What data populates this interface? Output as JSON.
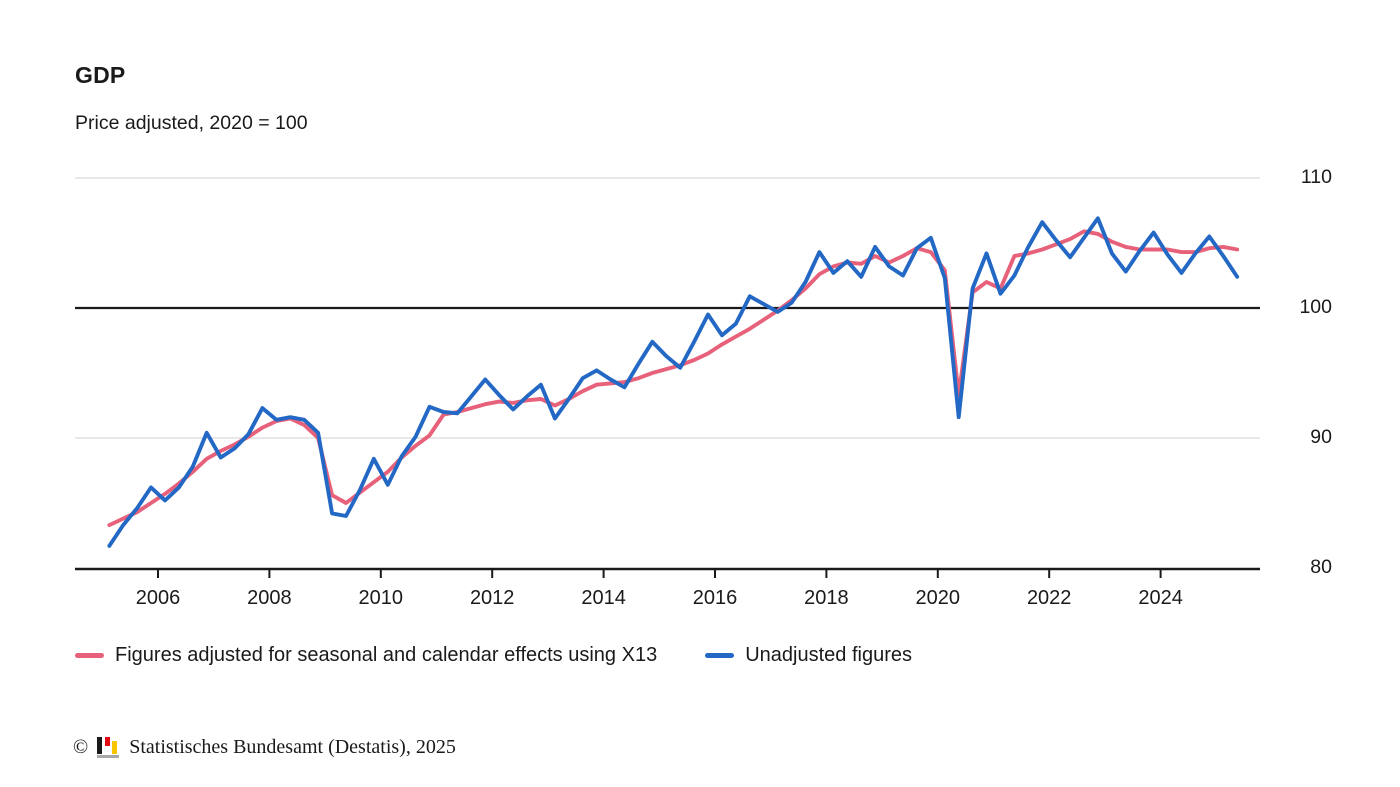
{
  "header": {
    "title": "GDP",
    "subtitle": "Price adjusted, 2020 = 100"
  },
  "legend": {
    "items": [
      {
        "label": "Figures adjusted for seasonal and calendar effects using X13",
        "color": "#e8617a"
      },
      {
        "label": "Unadjusted figures",
        "color": "#2368c4"
      }
    ]
  },
  "footer": {
    "copyright_symbol": "©",
    "source": "Statistisches Bundesamt (Destatis), 2025",
    "logo_colors": {
      "black": "#1a1a1a",
      "red": "#e30613",
      "gold": "#f8c500",
      "base": "#a8a8a8"
    }
  },
  "chart_data": {
    "type": "line",
    "title": "GDP",
    "subtitle": "Price adjusted, 2020 = 100",
    "x_unit": "quarter",
    "xlabel": "",
    "ylabel": "",
    "ylim": [
      80,
      110
    ],
    "yticks": [
      80,
      90,
      100,
      110
    ],
    "reference_line": 100,
    "xticks": [
      2006,
      2008,
      2010,
      2012,
      2014,
      2016,
      2018,
      2020,
      2022,
      2024
    ],
    "grid": "horizontal-light",
    "legend_position": "bottom",
    "colors": {
      "grid": "#d9d9d9",
      "axis": "#1a1a1a",
      "reference": "#1a1a1a"
    },
    "categories": [
      "2005 Q1",
      "2005 Q2",
      "2005 Q3",
      "2005 Q4",
      "2006 Q1",
      "2006 Q2",
      "2006 Q3",
      "2006 Q4",
      "2007 Q1",
      "2007 Q2",
      "2007 Q3",
      "2007 Q4",
      "2008 Q1",
      "2008 Q2",
      "2008 Q3",
      "2008 Q4",
      "2009 Q1",
      "2009 Q2",
      "2009 Q3",
      "2009 Q4",
      "2010 Q1",
      "2010 Q2",
      "2010 Q3",
      "2010 Q4",
      "2011 Q1",
      "2011 Q2",
      "2011 Q3",
      "2011 Q4",
      "2012 Q1",
      "2012 Q2",
      "2012 Q3",
      "2012 Q4",
      "2013 Q1",
      "2013 Q2",
      "2013 Q3",
      "2013 Q4",
      "2014 Q1",
      "2014 Q2",
      "2014 Q3",
      "2014 Q4",
      "2015 Q1",
      "2015 Q2",
      "2015 Q3",
      "2015 Q4",
      "2016 Q1",
      "2016 Q2",
      "2016 Q3",
      "2016 Q4",
      "2017 Q1",
      "2017 Q2",
      "2017 Q3",
      "2017 Q4",
      "2018 Q1",
      "2018 Q2",
      "2018 Q3",
      "2018 Q4",
      "2019 Q1",
      "2019 Q2",
      "2019 Q3",
      "2019 Q4",
      "2020 Q1",
      "2020 Q2",
      "2020 Q3",
      "2020 Q4",
      "2021 Q1",
      "2021 Q2",
      "2021 Q3",
      "2021 Q4",
      "2022 Q1",
      "2022 Q2",
      "2022 Q3",
      "2022 Q4",
      "2023 Q1",
      "2023 Q2",
      "2023 Q3",
      "2023 Q4",
      "2024 Q1",
      "2024 Q2",
      "2024 Q3",
      "2024 Q4",
      "2025 Q1",
      "2025 Q2"
    ],
    "series": [
      {
        "name": "Figures adjusted for seasonal and calendar effects using X13",
        "color": "#e8617a",
        "values": [
          83.3,
          83.8,
          84.3,
          85.0,
          85.7,
          86.5,
          87.4,
          88.4,
          89.0,
          89.5,
          90.1,
          90.8,
          91.3,
          91.5,
          91.0,
          90.0,
          85.6,
          85.0,
          85.8,
          86.6,
          87.4,
          88.5,
          89.4,
          90.2,
          91.8,
          92.0,
          92.3,
          92.6,
          92.8,
          92.7,
          92.9,
          93.0,
          92.5,
          93.0,
          93.6,
          94.1,
          94.2,
          94.3,
          94.6,
          95.0,
          95.3,
          95.6,
          96.0,
          96.5,
          97.2,
          97.8,
          98.4,
          99.1,
          99.8,
          100.6,
          101.5,
          102.6,
          103.2,
          103.5,
          103.4,
          104.0,
          103.5,
          104.0,
          104.6,
          104.3,
          102.9,
          93.3,
          101.2,
          102.0,
          101.5,
          104.0,
          104.2,
          104.5,
          104.9,
          105.3,
          105.9,
          105.7,
          105.1,
          104.7,
          104.5,
          104.5,
          104.5,
          104.3,
          104.3,
          104.6,
          104.7,
          104.5
        ]
      },
      {
        "name": "Unadjusted figures",
        "color": "#2368c4",
        "values": [
          81.7,
          83.3,
          84.6,
          86.2,
          85.2,
          86.2,
          87.8,
          90.4,
          88.5,
          89.2,
          90.3,
          92.3,
          91.4,
          91.6,
          91.4,
          90.4,
          84.2,
          84.0,
          86.0,
          88.4,
          86.4,
          88.6,
          90.1,
          92.4,
          92.0,
          91.9,
          93.2,
          94.5,
          93.3,
          92.2,
          93.2,
          94.1,
          91.5,
          93.0,
          94.6,
          95.2,
          94.5,
          93.9,
          95.7,
          97.4,
          96.3,
          95.4,
          97.4,
          99.5,
          97.9,
          98.8,
          100.9,
          100.3,
          99.7,
          100.4,
          102.0,
          104.3,
          102.7,
          103.6,
          102.4,
          104.7,
          103.2,
          102.5,
          104.6,
          105.4,
          102.3,
          91.6,
          101.5,
          104.2,
          101.1,
          102.5,
          104.7,
          106.6,
          105.2,
          103.9,
          105.4,
          106.9,
          104.2,
          102.8,
          104.4,
          105.8,
          104.1,
          102.7,
          104.2,
          105.5,
          104.0,
          102.4
        ]
      }
    ]
  }
}
